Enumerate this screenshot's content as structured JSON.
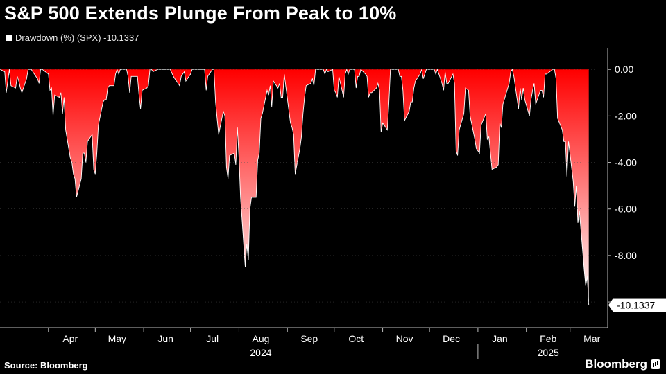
{
  "title": "S&P 500 Extends Plunge From Peak to 10%",
  "legend": {
    "label": "Drawdown (%) (SPX) -10.1337"
  },
  "source": "Source: Bloomberg",
  "brand": "Bloomberg",
  "colors": {
    "background": "#000000",
    "fill_top": "#ff0000",
    "fill_bottom": "#ffffff",
    "line": "#ffffff",
    "grid": "#555555"
  },
  "chart_data": {
    "type": "area",
    "series": [
      {
        "name": "Drawdown (%) (SPX)",
        "last_value_label": "-10.1337",
        "points": [
          [
            "2024-03-01",
            0
          ],
          [
            "2024-03-04",
            -0.1
          ],
          [
            "2024-03-05",
            -1.0
          ],
          [
            "2024-03-06",
            -0.5
          ],
          [
            "2024-03-07",
            0
          ],
          [
            "2024-03-08",
            -0.7
          ],
          [
            "2024-03-11",
            -0.8
          ],
          [
            "2024-03-12",
            -0.3
          ],
          [
            "2024-03-13",
            -0.5
          ],
          [
            "2024-03-14",
            -0.8
          ],
          [
            "2024-03-15",
            -1.0
          ],
          [
            "2024-03-18",
            -0.4
          ],
          [
            "2024-03-19",
            0
          ],
          [
            "2024-03-20",
            0
          ],
          [
            "2024-03-21",
            0
          ],
          [
            "2024-03-22",
            -0.1
          ],
          [
            "2024-03-25",
            -0.4
          ],
          [
            "2024-03-26",
            -0.6
          ],
          [
            "2024-03-27",
            0
          ],
          [
            "2024-03-28",
            0
          ],
          [
            "2024-04-01",
            -0.2
          ],
          [
            "2024-04-02",
            -0.9
          ],
          [
            "2024-04-03",
            -0.8
          ],
          [
            "2024-04-04",
            -2.0
          ],
          [
            "2024-04-05",
            -1.1
          ],
          [
            "2024-04-08",
            -1.2
          ],
          [
            "2024-04-09",
            -1.0
          ],
          [
            "2024-04-10",
            -1.9
          ],
          [
            "2024-04-11",
            -1.2
          ],
          [
            "2024-04-12",
            -2.6
          ],
          [
            "2024-04-15",
            -3.8
          ],
          [
            "2024-04-16",
            -4.0
          ],
          [
            "2024-04-17",
            -4.5
          ],
          [
            "2024-04-18",
            -4.7
          ],
          [
            "2024-04-19",
            -5.5
          ],
          [
            "2024-04-22",
            -4.7
          ],
          [
            "2024-04-23",
            -3.6
          ],
          [
            "2024-04-24",
            -3.6
          ],
          [
            "2024-04-25",
            -4.0
          ],
          [
            "2024-04-26",
            -3.1
          ],
          [
            "2024-04-29",
            -2.8
          ],
          [
            "2024-04-30",
            -4.3
          ],
          [
            "2024-05-01",
            -4.5
          ],
          [
            "2024-05-02",
            -3.6
          ],
          [
            "2024-05-03",
            -2.4
          ],
          [
            "2024-05-06",
            -1.4
          ],
          [
            "2024-05-07",
            -1.3
          ],
          [
            "2024-05-08",
            -1.3
          ],
          [
            "2024-05-09",
            -0.8
          ],
          [
            "2024-05-10",
            -0.7
          ],
          [
            "2024-05-13",
            -0.7
          ],
          [
            "2024-05-14",
            -0.2
          ],
          [
            "2024-05-15",
            0
          ],
          [
            "2024-05-16",
            -0.2
          ],
          [
            "2024-05-17",
            0
          ],
          [
            "2024-05-20",
            0
          ],
          [
            "2024-05-21",
            0
          ],
          [
            "2024-05-22",
            -0.3
          ],
          [
            "2024-05-23",
            -1.0
          ],
          [
            "2024-05-24",
            -0.3
          ],
          [
            "2024-05-28",
            -0.3
          ],
          [
            "2024-05-29",
            -1.1
          ],
          [
            "2024-05-30",
            -1.7
          ],
          [
            "2024-05-31",
            -0.9
          ],
          [
            "2024-06-03",
            -0.8
          ],
          [
            "2024-06-04",
            -0.7
          ],
          [
            "2024-06-05",
            0
          ],
          [
            "2024-06-06",
            0
          ],
          [
            "2024-06-07",
            -0.1
          ],
          [
            "2024-06-10",
            0
          ],
          [
            "2024-06-11",
            0
          ],
          [
            "2024-06-12",
            0
          ],
          [
            "2024-06-13",
            0
          ],
          [
            "2024-06-14",
            0
          ],
          [
            "2024-06-17",
            0
          ],
          [
            "2024-06-18",
            0
          ],
          [
            "2024-06-20",
            -0.3
          ],
          [
            "2024-06-21",
            -0.4
          ],
          [
            "2024-06-24",
            -0.7
          ],
          [
            "2024-06-25",
            -0.3
          ],
          [
            "2024-06-26",
            -0.2
          ],
          [
            "2024-06-27",
            -0.1
          ],
          [
            "2024-06-28",
            -0.5
          ],
          [
            "2024-07-01",
            -0.2
          ],
          [
            "2024-07-02",
            0
          ],
          [
            "2024-07-03",
            0
          ],
          [
            "2024-07-05",
            0
          ],
          [
            "2024-07-08",
            0
          ],
          [
            "2024-07-09",
            0
          ],
          [
            "2024-07-10",
            0
          ],
          [
            "2024-07-11",
            -0.9
          ],
          [
            "2024-07-12",
            -0.3
          ],
          [
            "2024-07-15",
            0
          ],
          [
            "2024-07-16",
            0
          ],
          [
            "2024-07-17",
            -1.4
          ],
          [
            "2024-07-18",
            -2.1
          ],
          [
            "2024-07-19",
            -2.8
          ],
          [
            "2024-07-22",
            -1.8
          ],
          [
            "2024-07-23",
            -2.0
          ],
          [
            "2024-07-24",
            -4.2
          ],
          [
            "2024-07-25",
            -4.7
          ],
          [
            "2024-07-26",
            -3.7
          ],
          [
            "2024-07-29",
            -3.6
          ],
          [
            "2024-07-30",
            -4.1
          ],
          [
            "2024-07-31",
            -2.5
          ],
          [
            "2024-08-01",
            -3.8
          ],
          [
            "2024-08-02",
            -5.5
          ],
          [
            "2024-08-05",
            -8.5
          ],
          [
            "2024-08-06",
            -7.5
          ],
          [
            "2024-08-07",
            -8.2
          ],
          [
            "2024-08-08",
            -6.0
          ],
          [
            "2024-08-09",
            -5.5
          ],
          [
            "2024-08-12",
            -5.5
          ],
          [
            "2024-08-13",
            -3.9
          ],
          [
            "2024-08-14",
            -3.6
          ],
          [
            "2024-08-15",
            -2.1
          ],
          [
            "2024-08-16",
            -1.9
          ],
          [
            "2024-08-19",
            -0.9
          ],
          [
            "2024-08-20",
            -1.1
          ],
          [
            "2024-08-21",
            -0.7
          ],
          [
            "2024-08-22",
            -1.6
          ],
          [
            "2024-08-23",
            -0.5
          ],
          [
            "2024-08-26",
            -0.8
          ],
          [
            "2024-08-27",
            -0.6
          ],
          [
            "2024-08-28",
            -1.2
          ],
          [
            "2024-08-29",
            -1.2
          ],
          [
            "2024-08-30",
            -0.2
          ],
          [
            "2024-09-03",
            -2.3
          ],
          [
            "2024-09-04",
            -2.5
          ],
          [
            "2024-09-05",
            -2.8
          ],
          [
            "2024-09-06",
            -4.5
          ],
          [
            "2024-09-09",
            -3.4
          ],
          [
            "2024-09-10",
            -2.9
          ],
          [
            "2024-09-11",
            -1.9
          ],
          [
            "2024-09-12",
            -1.2
          ],
          [
            "2024-09-13",
            -0.7
          ],
          [
            "2024-09-16",
            -0.6
          ],
          [
            "2024-09-17",
            -0.4
          ],
          [
            "2024-09-18",
            -0.7
          ],
          [
            "2024-09-19",
            0
          ],
          [
            "2024-09-20",
            0
          ],
          [
            "2024-09-23",
            0
          ],
          [
            "2024-09-24",
            0
          ],
          [
            "2024-09-25",
            -0.2
          ],
          [
            "2024-09-26",
            0
          ],
          [
            "2024-09-27",
            -0.1
          ],
          [
            "2024-09-30",
            0
          ],
          [
            "2024-10-01",
            -0.9
          ],
          [
            "2024-10-02",
            -1.0
          ],
          [
            "2024-10-03",
            -1.2
          ],
          [
            "2024-10-04",
            -0.3
          ],
          [
            "2024-10-07",
            -1.2
          ],
          [
            "2024-10-08",
            -0.2
          ],
          [
            "2024-10-09",
            0
          ],
          [
            "2024-10-10",
            -0.2
          ],
          [
            "2024-10-11",
            0
          ],
          [
            "2024-10-14",
            0
          ],
          [
            "2024-10-15",
            -0.8
          ],
          [
            "2024-10-16",
            -0.3
          ],
          [
            "2024-10-17",
            -0.3
          ],
          [
            "2024-10-18",
            0
          ],
          [
            "2024-10-21",
            -0.2
          ],
          [
            "2024-10-22",
            -0.3
          ],
          [
            "2024-10-23",
            -1.2
          ],
          [
            "2024-10-24",
            -1.0
          ],
          [
            "2024-10-25",
            -1.0
          ],
          [
            "2024-10-28",
            -0.8
          ],
          [
            "2024-10-29",
            -0.6
          ],
          [
            "2024-10-30",
            -0.9
          ],
          [
            "2024-10-31",
            -2.7
          ],
          [
            "2024-11-01",
            -2.3
          ],
          [
            "2024-11-04",
            -2.6
          ],
          [
            "2024-11-05",
            -1.4
          ],
          [
            "2024-11-06",
            0
          ],
          [
            "2024-11-07",
            0
          ],
          [
            "2024-11-08",
            0
          ],
          [
            "2024-11-11",
            0
          ],
          [
            "2024-11-12",
            -0.3
          ],
          [
            "2024-11-13",
            -0.3
          ],
          [
            "2024-11-14",
            -0.9
          ],
          [
            "2024-11-15",
            -2.2
          ],
          [
            "2024-11-18",
            -1.8
          ],
          [
            "2024-11-19",
            -1.4
          ],
          [
            "2024-11-20",
            -1.4
          ],
          [
            "2024-11-21",
            -0.8
          ],
          [
            "2024-11-22",
            -0.5
          ],
          [
            "2024-11-25",
            -0.2
          ],
          [
            "2024-11-26",
            0
          ],
          [
            "2024-11-27",
            -0.4
          ],
          [
            "2024-11-29",
            0
          ],
          [
            "2024-12-02",
            0
          ],
          [
            "2024-12-03",
            0
          ],
          [
            "2024-12-04",
            0
          ],
          [
            "2024-12-05",
            -0.2
          ],
          [
            "2024-12-06",
            0
          ],
          [
            "2024-12-09",
            -0.6
          ],
          [
            "2024-12-10",
            -0.9
          ],
          [
            "2024-12-11",
            -0.1
          ],
          [
            "2024-12-12",
            -0.6
          ],
          [
            "2024-12-13",
            -0.6
          ],
          [
            "2024-12-16",
            -0.2
          ],
          [
            "2024-12-17",
            -0.6
          ],
          [
            "2024-12-18",
            -3.5
          ],
          [
            "2024-12-19",
            -3.7
          ],
          [
            "2024-12-20",
            -2.6
          ],
          [
            "2024-12-23",
            -1.9
          ],
          [
            "2024-12-24",
            -0.8
          ],
          [
            "2024-12-26",
            -0.9
          ],
          [
            "2024-12-27",
            -2.0
          ],
          [
            "2024-12-30",
            -3.0
          ],
          [
            "2024-12-31",
            -3.4
          ],
          [
            "2025-01-02",
            -3.6
          ],
          [
            "2025-01-03",
            -2.4
          ],
          [
            "2025-01-06",
            -1.9
          ],
          [
            "2025-01-07",
            -3.0
          ],
          [
            "2025-01-08",
            -2.9
          ],
          [
            "2025-01-10",
            -4.3
          ],
          [
            "2025-01-13",
            -4.2
          ],
          [
            "2025-01-14",
            -4.1
          ],
          [
            "2025-01-15",
            -2.3
          ],
          [
            "2025-01-16",
            -2.5
          ],
          [
            "2025-01-17",
            -1.5
          ],
          [
            "2025-01-21",
            -0.6
          ],
          [
            "2025-01-22",
            -0.1
          ],
          [
            "2025-01-23",
            0
          ],
          [
            "2025-01-24",
            -0.3
          ],
          [
            "2025-01-27",
            -1.7
          ],
          [
            "2025-01-28",
            -0.8
          ],
          [
            "2025-01-29",
            -1.3
          ],
          [
            "2025-01-30",
            -0.8
          ],
          [
            "2025-01-31",
            -1.3
          ],
          [
            "2025-02-03",
            -2.0
          ],
          [
            "2025-02-04",
            -1.3
          ],
          [
            "2025-02-05",
            -0.9
          ],
          [
            "2025-02-06",
            -0.6
          ],
          [
            "2025-02-07",
            -1.5
          ],
          [
            "2025-02-10",
            -0.9
          ],
          [
            "2025-02-11",
            -0.9
          ],
          [
            "2025-02-12",
            -1.2
          ],
          [
            "2025-02-13",
            -0.2
          ],
          [
            "2025-02-14",
            -0.2
          ],
          [
            "2025-02-18",
            0
          ],
          [
            "2025-02-19",
            0
          ],
          [
            "2025-02-20",
            -0.4
          ],
          [
            "2025-02-21",
            -2.1
          ],
          [
            "2025-02-24",
            -2.6
          ],
          [
            "2025-02-25",
            -3.1
          ],
          [
            "2025-02-26",
            -3.1
          ],
          [
            "2025-02-27",
            -4.6
          ],
          [
            "2025-02-28",
            -3.1
          ],
          [
            "2025-03-03",
            -4.8
          ],
          [
            "2025-03-04",
            -5.9
          ],
          [
            "2025-03-05",
            -5.0
          ],
          [
            "2025-03-06",
            -6.6
          ],
          [
            "2025-03-07",
            -6.1
          ],
          [
            "2025-03-10",
            -8.6
          ],
          [
            "2025-03-11",
            -9.3
          ],
          [
            "2025-03-12",
            -8.9
          ],
          [
            "2025-03-13",
            -10.1337
          ]
        ]
      }
    ],
    "y_ticks": [
      "0.00",
      "-2.00",
      "-4.00",
      "-6.00",
      "-8.00",
      "-10.00"
    ],
    "ylim": [
      -11.1,
      0.9
    ],
    "x_ticks": [
      {
        "label": "Apr",
        "date": "2024-04-15"
      },
      {
        "label": "May",
        "date": "2024-05-15"
      },
      {
        "label": "Jun",
        "date": "2024-06-15"
      },
      {
        "label": "Jul",
        "date": "2024-07-15"
      },
      {
        "label": "Aug",
        "date": "2024-08-15"
      },
      {
        "label": "Sep",
        "date": "2024-09-15"
      },
      {
        "label": "Oct",
        "date": "2024-10-15"
      },
      {
        "label": "Nov",
        "date": "2024-11-15"
      },
      {
        "label": "Dec",
        "date": "2024-12-15"
      },
      {
        "label": "Jan",
        "date": "2025-01-15"
      },
      {
        "label": "Feb",
        "date": "2025-02-15"
      },
      {
        "label": "Mar",
        "date": "2025-03-15"
      }
    ],
    "x_years": [
      {
        "label": "2024",
        "date": "2024-08-15"
      },
      {
        "label": "2025",
        "date": "2025-02-15"
      }
    ],
    "xlim": [
      "2024-03-01",
      "2025-03-18"
    ],
    "y_axis_side": "right",
    "grid": false,
    "legend_position": "top-left"
  }
}
